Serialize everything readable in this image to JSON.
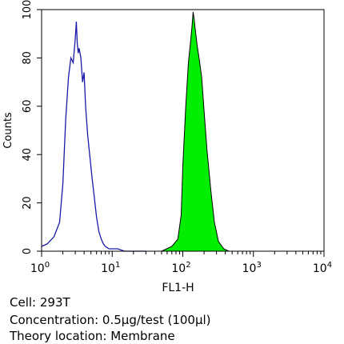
{
  "chart_data": {
    "type": "area",
    "title": "",
    "xlabel": "FL1-H",
    "ylabel": "Counts",
    "xscale": "log",
    "xlim": [
      1,
      10000
    ],
    "ylim": [
      0,
      100
    ],
    "grid": false,
    "x_ticks": [
      {
        "value": 1,
        "base": "10",
        "exp": "0"
      },
      {
        "value": 10,
        "base": "10",
        "exp": "1"
      },
      {
        "value": 100,
        "base": "10",
        "exp": "2"
      },
      {
        "value": 1000,
        "base": "10",
        "exp": "3"
      },
      {
        "value": 10000,
        "base": "10",
        "exp": "4"
      }
    ],
    "y_ticks": [
      0,
      20,
      40,
      60,
      80,
      100
    ],
    "series": [
      {
        "style": "outline",
        "color": "#1a1aa6",
        "x": [
          1.0,
          1.2,
          1.5,
          1.8,
          2.0,
          2.2,
          2.4,
          2.6,
          2.8,
          3.0,
          3.1,
          3.2,
          3.3,
          3.4,
          3.6,
          3.8,
          4.0,
          4.2,
          4.5,
          4.8,
          5.2,
          5.6,
          6.0,
          6.5,
          7.0,
          7.5,
          8.0,
          9.0,
          10.0,
          12.0,
          15.0,
          20.0,
          30.0
        ],
        "y": [
          2,
          3,
          6,
          12,
          28,
          55,
          72,
          80,
          78,
          88,
          95,
          86,
          82,
          84,
          80,
          70,
          74,
          60,
          48,
          40,
          30,
          22,
          14,
          8,
          5,
          3,
          2,
          1,
          1,
          1,
          0,
          0,
          0
        ]
      },
      {
        "style": "filled",
        "color": "#00ee00",
        "x": [
          50,
          70,
          85,
          95,
          100,
          110,
          120,
          130,
          135,
          140,
          145,
          150,
          160,
          170,
          185,
          200,
          220,
          250,
          280,
          320,
          380,
          450
        ],
        "y": [
          0,
          2,
          5,
          15,
          35,
          60,
          78,
          88,
          93,
          99,
          96,
          92,
          85,
          80,
          72,
          58,
          42,
          25,
          12,
          4,
          1,
          0
        ]
      }
    ]
  },
  "info": {
    "cell": "Cell: 293T",
    "concentration": "Concentration: 0.5μg/test (100μl)",
    "location": "Theory location: Membrane"
  }
}
